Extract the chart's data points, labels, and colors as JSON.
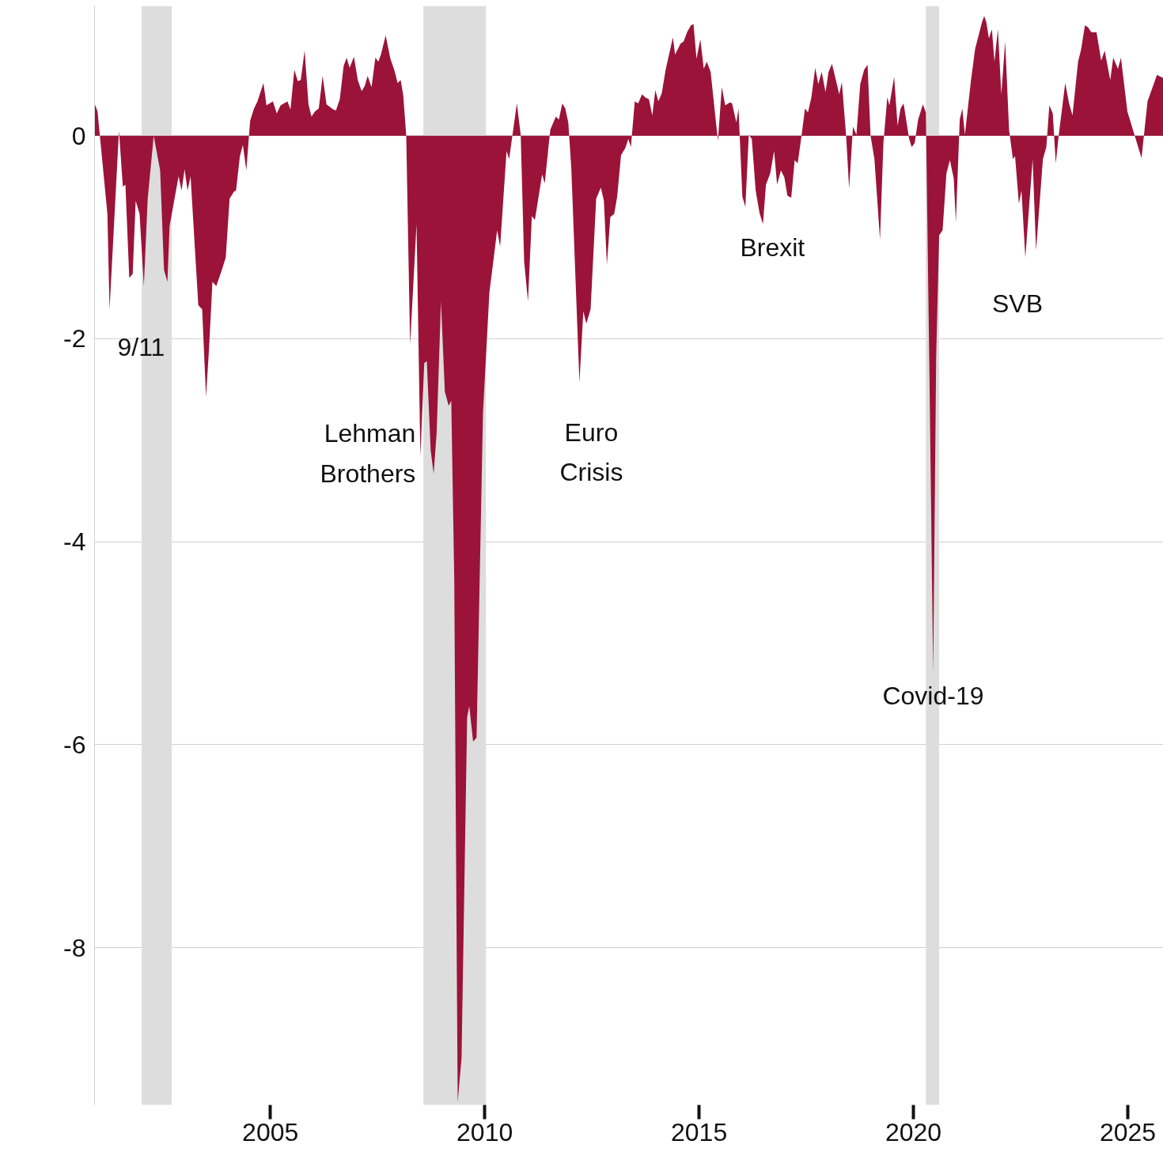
{
  "chart_data": {
    "type": "area",
    "x": [
      2000.9,
      2000.97,
      2001.2,
      2001.25,
      2001.47,
      2001.56,
      2001.62,
      2001.71,
      2001.79,
      2001.86,
      2001.95,
      2002.05,
      2002.14,
      2002.28,
      2002.43,
      2002.52,
      2002.6,
      2002.65,
      2002.86,
      2002.93,
      2003.0,
      2003.07,
      2003.14,
      2003.32,
      2003.41,
      2003.5,
      2003.57,
      2003.65,
      2003.74,
      2003.87,
      2003.96,
      2004.05,
      2004.15,
      2004.2,
      2004.29,
      2004.36,
      2004.44,
      2004.53,
      2004.62,
      2004.7,
      2004.84,
      2004.91,
      2005.06,
      2005.15,
      2005.24,
      2005.4,
      2005.47,
      2005.56,
      2005.64,
      2005.71,
      2005.8,
      2005.89,
      2005.96,
      2006.04,
      2006.13,
      2006.22,
      2006.31,
      2006.47,
      2006.53,
      2006.62,
      2006.71,
      2006.78,
      2006.85,
      2006.95,
      2007.04,
      2007.13,
      2007.2,
      2007.27,
      2007.36,
      2007.45,
      2007.52,
      2007.58,
      2007.69,
      2007.8,
      2007.89,
      2007.97,
      2008.04,
      2008.1,
      2008.17,
      2008.26,
      2008.41,
      2008.5,
      2008.59,
      2008.65,
      2008.74,
      2008.81,
      2008.88,
      2008.98,
      2009.07,
      2009.16,
      2009.22,
      2009.29,
      2009.37,
      2009.46,
      2009.59,
      2009.64,
      2009.73,
      2009.81,
      2009.96,
      2010.11,
      2010.2,
      2010.29,
      2010.36,
      2010.51,
      2010.57,
      2010.75,
      2010.84,
      2010.92,
      2011.01,
      2011.1,
      2011.17,
      2011.34,
      2011.4,
      2011.53,
      2011.66,
      2011.73,
      2011.81,
      2011.88,
      2011.95,
      2012.02,
      2012.21,
      2012.3,
      2012.37,
      2012.47,
      2012.6,
      2012.71,
      2012.78,
      2012.85,
      2012.93,
      2013.02,
      2013.09,
      2013.18,
      2013.28,
      2013.35,
      2013.41,
      2013.5,
      2013.58,
      2013.67,
      2013.74,
      2013.83,
      2013.91,
      2013.98,
      2014.05,
      2014.13,
      2014.22,
      2014.39,
      2014.44,
      2014.57,
      2014.64,
      2014.72,
      2014.81,
      2014.87,
      2014.94,
      2015.03,
      2015.11,
      2015.18,
      2015.27,
      2015.44,
      2015.53,
      2015.61,
      2015.72,
      2015.77,
      2015.87,
      2015.92,
      2016.01,
      2016.08,
      2016.16,
      2016.23,
      2016.32,
      2016.41,
      2016.49,
      2016.56,
      2016.66,
      2016.75,
      2016.82,
      2016.91,
      2016.99,
      2017.06,
      2017.15,
      2017.23,
      2017.3,
      2017.39,
      2017.47,
      2017.54,
      2017.62,
      2017.71,
      2017.78,
      2017.86,
      2017.95,
      2018.02,
      2018.1,
      2018.18,
      2018.27,
      2018.33,
      2018.43,
      2018.5,
      2018.59,
      2018.67,
      2018.76,
      2018.85,
      2018.93,
      2019.0,
      2019.09,
      2019.22,
      2019.3,
      2019.39,
      2019.44,
      2019.55,
      2019.63,
      2019.7,
      2019.77,
      2019.9,
      2019.96,
      2020.03,
      2020.11,
      2020.22,
      2020.29,
      2020.38,
      2020.46,
      2020.53,
      2020.6,
      2020.68,
      2020.77,
      2020.85,
      2020.94,
      2020.99,
      2021.08,
      2021.14,
      2021.2,
      2021.34,
      2021.44,
      2021.6,
      2021.65,
      2021.7,
      2021.76,
      2021.83,
      2021.89,
      2021.97,
      2022.05,
      2022.14,
      2022.23,
      2022.32,
      2022.37,
      2022.46,
      2022.52,
      2022.61,
      2022.78,
      2022.86,
      2023.02,
      2023.1,
      2023.17,
      2023.25,
      2023.32,
      2023.39,
      2023.54,
      2023.63,
      2023.71,
      2023.84,
      2023.91,
      2024.0,
      2024.07,
      2024.15,
      2024.27,
      2024.38,
      2024.46,
      2024.59,
      2024.66,
      2024.77,
      2024.84,
      2024.99,
      2025.32,
      2025.46,
      2025.68,
      2025.83
    ],
    "series": [
      {
        "color": "#9b1339",
        "values": [
          0.32,
          0.24,
          -0.77,
          -1.71,
          0.05,
          -0.5,
          -0.48,
          -1.4,
          -1.36,
          -0.64,
          -0.77,
          -1.48,
          -0.62,
          0.0,
          -0.34,
          -1.32,
          -1.44,
          -0.89,
          -0.4,
          -0.54,
          -0.33,
          -0.54,
          -0.4,
          -1.67,
          -1.71,
          -2.57,
          -2.1,
          -1.44,
          -1.48,
          -1.32,
          -1.2,
          -0.62,
          -0.55,
          -0.54,
          -0.2,
          -0.09,
          -0.34,
          0.15,
          0.27,
          0.34,
          0.52,
          0.3,
          0.34,
          0.22,
          0.3,
          0.34,
          0.26,
          0.65,
          0.54,
          0.55,
          0.84,
          0.31,
          0.19,
          0.24,
          0.27,
          0.59,
          0.31,
          0.26,
          0.25,
          0.36,
          0.69,
          0.77,
          0.67,
          0.78,
          0.55,
          0.44,
          0.49,
          0.59,
          0.48,
          0.77,
          0.73,
          0.8,
          0.99,
          0.76,
          0.65,
          0.52,
          0.55,
          0.4,
          0.0,
          -2.06,
          -0.87,
          -3.16,
          -2.24,
          -2.22,
          -3.1,
          -3.33,
          -2.92,
          -1.63,
          -2.52,
          -2.66,
          -2.61,
          -4.37,
          -9.52,
          -9.09,
          -5.73,
          -5.62,
          -5.97,
          -5.93,
          -2.73,
          -1.54,
          -1.24,
          -0.93,
          -1.09,
          -0.15,
          -0.23,
          0.32,
          0.01,
          -1.24,
          -1.63,
          -0.79,
          -0.83,
          -0.38,
          -0.47,
          0.06,
          0.19,
          0.16,
          0.32,
          0.27,
          0.13,
          -0.32,
          -2.43,
          -1.73,
          -1.85,
          -1.71,
          -0.62,
          -0.51,
          -0.64,
          -1.27,
          -0.8,
          -0.77,
          -0.6,
          -0.19,
          -0.12,
          -0.03,
          -0.11,
          0.34,
          0.32,
          0.41,
          0.38,
          0.36,
          0.2,
          0.45,
          0.34,
          0.42,
          0.65,
          0.97,
          0.8,
          0.91,
          0.93,
          1.02,
          1.09,
          1.1,
          0.76,
          0.95,
          0.66,
          0.73,
          0.63,
          -0.05,
          0.48,
          0.3,
          0.33,
          0.32,
          0.13,
          0.27,
          -0.6,
          -0.7,
          0.01,
          -0.03,
          -0.54,
          -0.76,
          -0.87,
          -0.48,
          -0.37,
          -0.15,
          -0.48,
          -0.34,
          -0.41,
          -0.59,
          -0.61,
          -0.24,
          -0.27,
          0.0,
          0.27,
          0.23,
          0.38,
          0.67,
          0.51,
          0.63,
          0.43,
          0.63,
          0.71,
          0.57,
          0.41,
          0.53,
          0.0,
          -0.52,
          0.09,
          0.01,
          0.51,
          0.65,
          0.7,
          0.0,
          -0.23,
          -1.02,
          -0.07,
          0.38,
          0.3,
          0.58,
          0.1,
          0.27,
          0.32,
          -0.03,
          -0.11,
          -0.07,
          0.16,
          0.31,
          0.23,
          -2.57,
          -5.3,
          -2.18,
          -0.98,
          -0.93,
          -0.37,
          -0.24,
          -0.42,
          -0.85,
          0.16,
          0.27,
          0.01,
          0.54,
          0.86,
          1.12,
          1.18,
          1.12,
          0.96,
          1.05,
          0.73,
          1.05,
          0.41,
          0.93,
          0.06,
          -0.23,
          -0.2,
          -0.67,
          -0.54,
          -1.2,
          -0.23,
          -1.13,
          -0.23,
          -0.11,
          0.3,
          0.22,
          -0.27,
          0.01,
          0.52,
          0.32,
          0.2,
          0.73,
          0.85,
          1.09,
          1.07,
          1.02,
          1.02,
          0.74,
          0.84,
          0.55,
          0.77,
          0.66,
          0.77,
          0.24,
          -0.22,
          0.34,
          0.6,
          0.57
        ]
      }
    ],
    "xlim": [
      2000.9,
      2025.83
    ],
    "ylim": [
      -9.55,
      1.28
    ],
    "xticks": [
      2005,
      2010,
      2015,
      2020,
      2025
    ],
    "yticks": [
      0,
      -2,
      -4,
      -6,
      -8
    ],
    "grid": "y",
    "bands": [
      {
        "axis": "x",
        "from": 2002.0,
        "to": 2002.7,
        "color": "#dddddd"
      },
      {
        "axis": "x",
        "from": 2008.57,
        "to": 2010.03,
        "color": "#dddddd"
      },
      {
        "axis": "x",
        "from": 2020.29,
        "to": 2020.6,
        "color": "#dddddd"
      }
    ],
    "annotations": [
      {
        "text": "9/11",
        "x": 2001.25,
        "y": -1.71
      },
      {
        "text": "Lehman\nBrothers",
        "x": 2008.5,
        "y": -3.16
      },
      {
        "text": "Euro\nCrisis",
        "x": 2012.21,
        "y": -2.43
      },
      {
        "text": "Brexit",
        "x": 2016.49,
        "y": -0.87
      },
      {
        "text": "Covid-19",
        "x": 2020.46,
        "y": -5.3
      },
      {
        "text": "SVB",
        "x": 2022.61,
        "y": -1.2
      }
    ]
  }
}
